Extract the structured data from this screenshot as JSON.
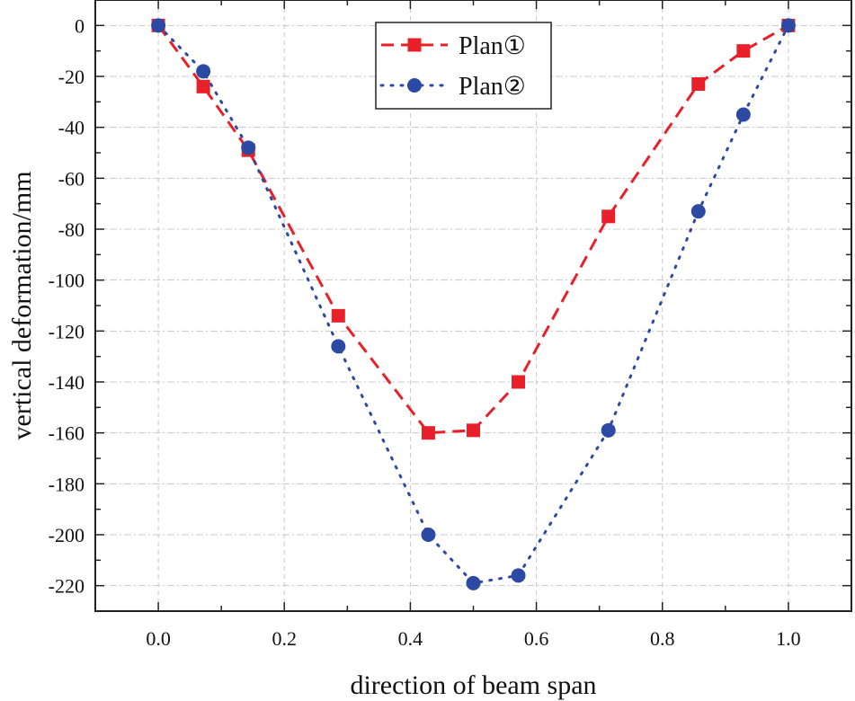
{
  "chart_data": {
    "type": "line",
    "title": "",
    "xlabel": "direction of beam span",
    "ylabel": "vertical deformation/mm",
    "xlim": [
      -0.1,
      1.1
    ],
    "ylim": [
      -230,
      10
    ],
    "xticks": [
      0.0,
      0.2,
      0.4,
      0.6,
      0.8,
      1.0
    ],
    "xtick_labels": [
      "0.0",
      "0.2",
      "0.4",
      "0.6",
      "0.8",
      "1.0"
    ],
    "yticks": [
      0,
      -20,
      -40,
      -60,
      -80,
      -100,
      -120,
      -140,
      -160,
      -180,
      -200,
      -220
    ],
    "ytick_labels": [
      "0",
      "-20",
      "-40",
      "-60",
      "-80",
      "-100",
      "-120",
      "-140",
      "-160",
      "-180",
      "-200",
      "-220"
    ],
    "grid": true,
    "legend": "top-center",
    "series": [
      {
        "name": "Plan①",
        "color": "#e8202a",
        "line_style": "dashed",
        "marker": "square",
        "x": [
          0.0,
          0.0714,
          0.1429,
          0.2857,
          0.4286,
          0.5,
          0.5714,
          0.7143,
          0.8571,
          0.9286,
          1.0
        ],
        "y": [
          0,
          -24,
          -49,
          -114,
          -160,
          -159,
          -140,
          -75,
          -23,
          -10,
          0
        ]
      },
      {
        "name": "Plan②",
        "color": "#2c4aa3",
        "line_style": "dotted",
        "marker": "circle",
        "x": [
          0.0,
          0.0714,
          0.1429,
          0.2857,
          0.4286,
          0.5,
          0.5714,
          0.7143,
          0.8571,
          0.9286,
          1.0
        ],
        "y": [
          0,
          -18,
          -48,
          -126,
          -200,
          -219,
          -216,
          -159,
          -73,
          -35,
          0
        ]
      }
    ]
  }
}
